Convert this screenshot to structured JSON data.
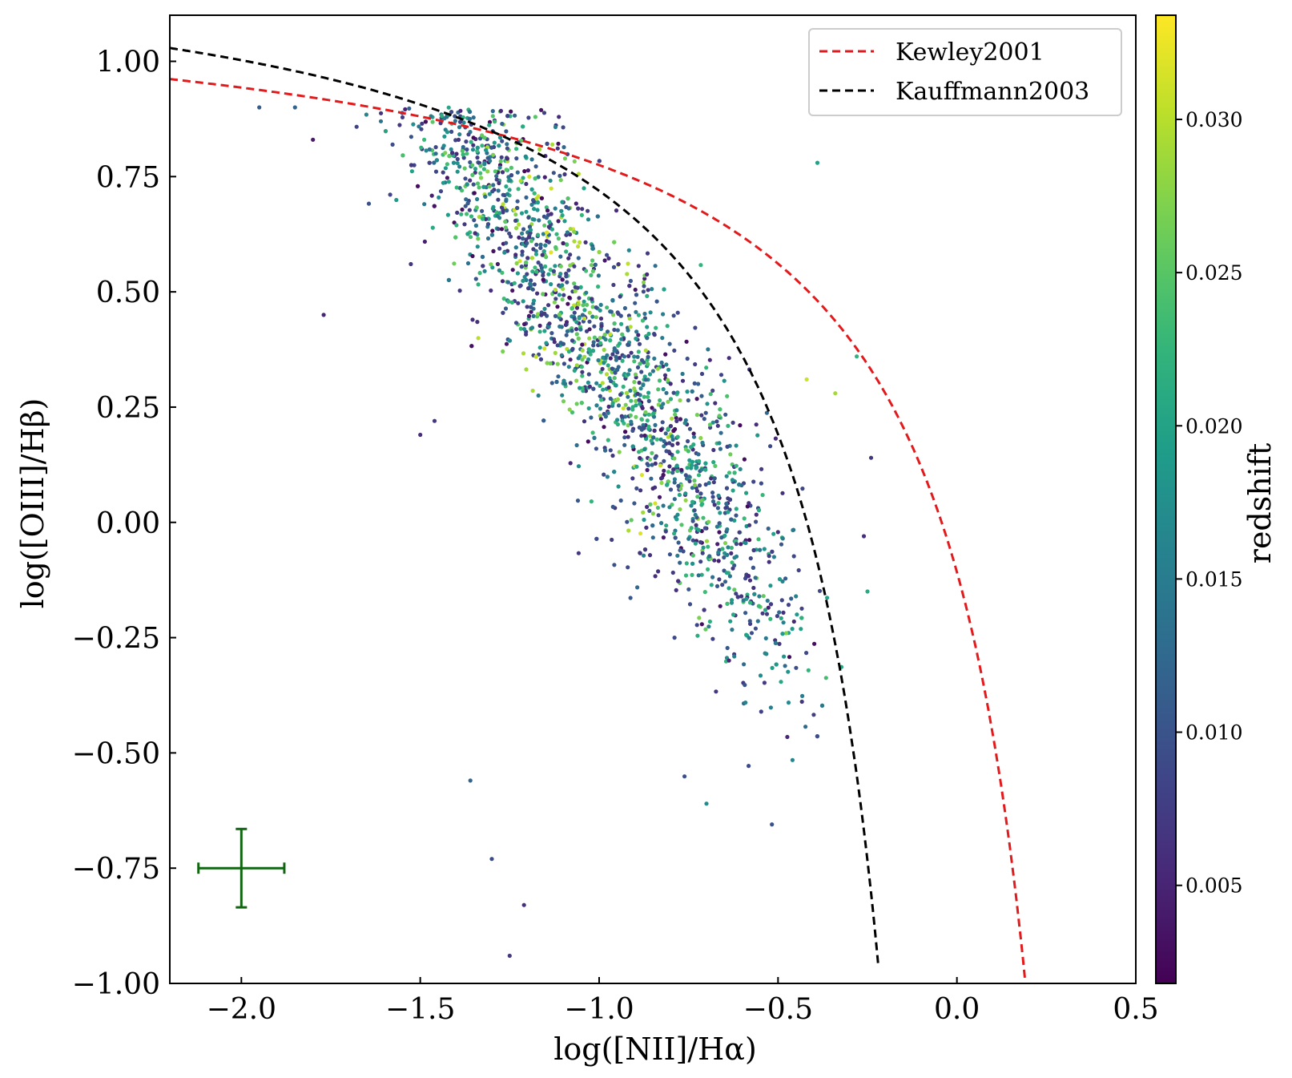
{
  "chart_data": {
    "type": "scatter",
    "title": "",
    "xlabel": "log([NII]/Hα)",
    "ylabel": "log([OIII]/Hβ)",
    "xlim": [
      -2.2,
      0.5
    ],
    "ylim": [
      -1.0,
      1.1
    ],
    "xticks": [
      -2.0,
      -1.5,
      -1.0,
      -0.5,
      0.0,
      0.5
    ],
    "xtick_labels": [
      "−2.0",
      "−1.5",
      "−1.0",
      "−0.5",
      "0.0",
      "0.5"
    ],
    "yticks": [
      -1.0,
      -0.75,
      -0.5,
      -0.25,
      0.0,
      0.25,
      0.5,
      0.75,
      1.0
    ],
    "ytick_labels": [
      "−1.00",
      "−0.75",
      "−0.50",
      "−0.25",
      "0.00",
      "0.25",
      "0.50",
      "0.75",
      "1.00"
    ],
    "grid": false,
    "legend_position": "top-right",
    "colorbar": {
      "label": "redshift",
      "colormap": "viridis",
      "range": [
        0.0018,
        0.0334
      ],
      "ticks": [
        0.005,
        0.01,
        0.015,
        0.02,
        0.025,
        0.03
      ],
      "tick_labels": [
        "0.005",
        "0.010",
        "0.015",
        "0.020",
        "0.025",
        "0.030"
      ]
    },
    "lines": [
      {
        "name": "Kewley2001",
        "color": "#e31a1c",
        "style": "dashed",
        "formula": "0.61/(x-0.47)+1.19",
        "x_range": [
          -2.2,
          0.19
        ]
      },
      {
        "name": "Kauffmann2003",
        "color": "#000000",
        "style": "dashed",
        "formula": "0.61/(x-0.05)+1.3",
        "x_range": [
          -2.2,
          -0.22
        ]
      }
    ],
    "error_bar": {
      "x": -2.0,
      "y": -0.75,
      "xerr": 0.12,
      "yerr": 0.085,
      "color": "#116611"
    },
    "scatter": {
      "count": 2300,
      "ridge": "y = 0.1 - 1.15*(x+0.75)",
      "x_range": [
        -1.95,
        -0.2
      ],
      "y_range": [
        -0.95,
        0.9
      ],
      "outliers": [
        {
          "x": -1.36,
          "y": -0.56,
          "z": 0.012
        },
        {
          "x": -1.3,
          "y": -0.73,
          "z": 0.009
        },
        {
          "x": -1.21,
          "y": -0.83,
          "z": 0.006
        },
        {
          "x": -1.25,
          "y": -0.94,
          "z": 0.007
        },
        {
          "x": -0.7,
          "y": -0.61,
          "z": 0.017
        },
        {
          "x": -0.39,
          "y": 0.78,
          "z": 0.02
        },
        {
          "x": -1.95,
          "y": 0.9,
          "z": 0.011
        },
        {
          "x": -1.85,
          "y": 0.9,
          "z": 0.012
        },
        {
          "x": -1.61,
          "y": 0.87,
          "z": 0.014
        },
        {
          "x": -1.8,
          "y": 0.83,
          "z": 0.004
        },
        {
          "x": -1.77,
          "y": 0.45,
          "z": 0.005
        },
        {
          "x": -0.42,
          "y": 0.31,
          "z": 0.031
        },
        {
          "x": -0.34,
          "y": 0.28,
          "z": 0.029
        },
        {
          "x": -0.24,
          "y": 0.14,
          "z": 0.007
        },
        {
          "x": -0.25,
          "y": -0.15,
          "z": 0.021
        },
        {
          "x": -0.28,
          "y": 0.36,
          "z": 0.022
        },
        {
          "x": -0.26,
          "y": -0.03,
          "z": 0.006
        },
        {
          "x": -1.5,
          "y": 0.19,
          "z": 0.006
        },
        {
          "x": -1.46,
          "y": 0.22,
          "z": 0.007
        }
      ]
    }
  }
}
